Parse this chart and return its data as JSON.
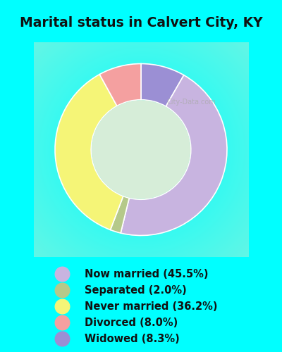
{
  "title": "Marital status in Calvert City, KY",
  "title_fontsize": 13.5,
  "bg_cyan": "#00FFFF",
  "chart_bg": "#d6edd8",
  "slices": [
    {
      "label": "Now married (45.5%)",
      "value": 45.5,
      "color": "#c8b4e0"
    },
    {
      "label": "Separated (2.0%)",
      "value": 2.0,
      "color": "#b5c98a"
    },
    {
      "label": "Never married (36.2%)",
      "value": 36.2,
      "color": "#f5f577"
    },
    {
      "label": "Divorced (8.0%)",
      "value": 8.0,
      "color": "#f4a0a0"
    },
    {
      "label": "Widowed (8.3%)",
      "value": 8.3,
      "color": "#9b8fd4"
    }
  ],
  "legend_colors": [
    "#c8b4e0",
    "#b5c98a",
    "#f5f577",
    "#f4a0a0",
    "#9b8fd4"
  ],
  "legend_labels": [
    "Now married (45.5%)",
    "Separated (2.0%)",
    "Never married (36.2%)",
    "Divorced (8.0%)",
    "Widowed (8.3%)"
  ],
  "plot_order": [
    4,
    0,
    1,
    2,
    3
  ],
  "startangle": 90,
  "donut_width": 0.42,
  "figsize": [
    4.0,
    5.0
  ],
  "dpi": 100
}
